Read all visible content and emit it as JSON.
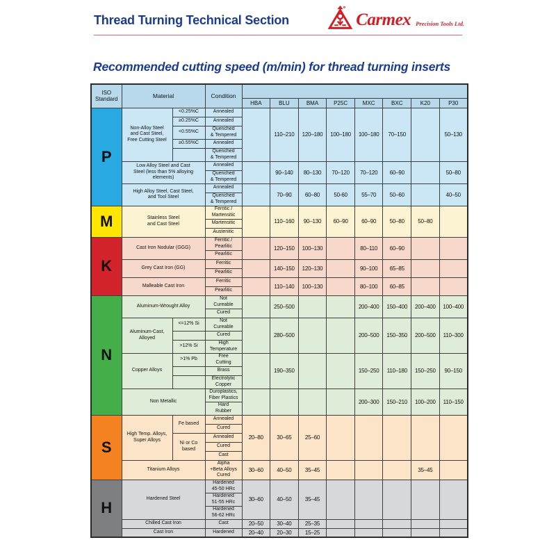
{
  "page": {
    "title": "Thread Turning Technical Section",
    "brand": {
      "name": "Carmex",
      "tagline": "Precision Tools Ltd."
    },
    "subtitle": "Recommended cutting speed (m/min) for thread turning inserts"
  },
  "colors": {
    "navy": "#1a3b8e",
    "carmex_red": "#d21f26",
    "header_bg": "#b7d9eb"
  },
  "table": {
    "headers": {
      "iso": "ISO\nStandard",
      "material": "Material",
      "condition": "Condition"
    },
    "grades": [
      "HBA",
      "BLU",
      "BMA",
      "P25C",
      "MXC",
      "BXC",
      "K20",
      "P30"
    ],
    "sections": [
      {
        "iso": "P",
        "label_bg": "#29a9e1",
        "row_bg": "#cbe6f4",
        "groups": [
          {
            "material": "Non-Alloy Steel\nand Cast Steel,\nFree Cutting Steel",
            "subspecs": [
              {
                "text": "<0.25%C",
                "span": 1
              },
              {
                "text": "≥0.25%C",
                "span": 1
              },
              {
                "text": "<0.55%C",
                "span": 1
              },
              {
                "text": "≥0.55%C",
                "span": 1
              },
              {
                "text": "",
                "span": 1
              }
            ],
            "conditions": [
              "Annealed",
              "Annealed",
              "Quenched\n& Tempered",
              "Annealed",
              "Quenched\n& Tempered"
            ],
            "values": [
              "",
              "110–210",
              "120–180",
              "100–180",
              "100–180",
              "70–150",
              "",
              "50–130"
            ]
          },
          {
            "material": "Low Alloy Steel and Cast\nSteel (less than 5% alloying\nelements)",
            "subspecs": null,
            "conditions": [
              "Annealed",
              "Quenched\n& Tempered"
            ],
            "values": [
              "",
              "90–140",
              "80–130",
              "70–120",
              "70–120",
              "60–90",
              "",
              "50–80"
            ]
          },
          {
            "material": "High Alloy Steel, Cast Steel,\nand Tool Steel",
            "subspecs": null,
            "conditions": [
              "Annealed",
              "Quenched\n& Tempered"
            ],
            "values": [
              "",
              "70–90",
              "60–80",
              "50-60",
              "55–70",
              "50–60",
              "",
              "40–50"
            ]
          }
        ]
      },
      {
        "iso": "M",
        "label_bg": "#ffe600",
        "row_bg": "#fbf3d2",
        "groups": [
          {
            "material": "Stainless Steel\nand Cast Steel",
            "subspecs": null,
            "conditions": [
              "Ferritic /\nMartensitic",
              "Martensitic",
              "Austenitic"
            ],
            "values": [
              "",
              "110–160",
              "90–130",
              "60–90",
              "60–90",
              "50–80",
              "50–80",
              ""
            ]
          }
        ]
      },
      {
        "iso": "K",
        "label_bg": "#d2232a",
        "row_bg": "#f6d9cb",
        "groups": [
          {
            "material": "Cast Iron Nodular (GGG)",
            "subspecs": null,
            "conditions": [
              "Ferritic /\nPearlitic",
              "Pearlitic"
            ],
            "values": [
              "",
              "120–150",
              "100–130",
              "",
              "80–110",
              "60–90",
              "",
              ""
            ]
          },
          {
            "material": "Grey Cast Iron (GG)",
            "subspecs": null,
            "conditions": [
              "Ferritic",
              "Pearlitic"
            ],
            "values": [
              "",
              "140–150",
              "120–130",
              "",
              "90–100",
              "65–85",
              "",
              ""
            ]
          },
          {
            "material": "Malleable Cast Iron",
            "subspecs": null,
            "conditions": [
              "Ferritic",
              "Pearlitic"
            ],
            "values": [
              "",
              "110–140",
              "100–130",
              "",
              "80–100",
              "60–85",
              "",
              ""
            ]
          }
        ]
      },
      {
        "iso": "N",
        "label_bg": "#44af49",
        "row_bg": "#dfedd8",
        "groups": [
          {
            "material": "Aluminum-Wrought Alloy",
            "subspecs": null,
            "conditions": [
              "Not\nCureable",
              "Cured"
            ],
            "values": [
              "",
              "250–500",
              "",
              "",
              "200–400",
              "150–400",
              "200–400",
              "100–400"
            ]
          },
          {
            "material": "Aluminum-Cast,\nAlloyed",
            "subspecs": [
              {
                "text": "<=12% Si",
                "span": 1
              },
              {
                "text": "",
                "span": 1
              },
              {
                "text": ">12% Si",
                "span": 1
              }
            ],
            "conditions": [
              "Not\nCureable",
              "Cured",
              "High\nTemperature"
            ],
            "values": [
              "",
              "280–500",
              "",
              "",
              "200–500",
              "150–350",
              "200–500",
              "110–300"
            ]
          },
          {
            "material": "Copper Alloys",
            "subspecs": [
              {
                "text": ">1% Pb",
                "span": 1
              },
              {
                "text": "",
                "span": 1
              },
              {
                "text": "",
                "span": 1
              }
            ],
            "conditions": [
              "Free\nCutting",
              "Brass",
              "Electrolytic\nCopper"
            ],
            "values": [
              "",
              "190–350",
              "",
              "",
              "150–250",
              "110–180",
              "150–250",
              "90–150"
            ]
          },
          {
            "material": "Non Metallic",
            "subspecs": null,
            "conditions": [
              "Duroplastics,\nFiber Plastics",
              "Hard\nRubber"
            ],
            "values": [
              "",
              "",
              "",
              "",
              "200–300",
              "150–210",
              "100–200",
              "110–150"
            ]
          }
        ]
      },
      {
        "iso": "S",
        "label_bg": "#f58220",
        "row_bg": "#fce4c9",
        "groups": [
          {
            "material": "High Temp. Alloys,\nSuper Alloys",
            "subspecs": [
              {
                "text": "Fe based",
                "span": 2
              },
              {
                "text": "Ni or Co\nbased",
                "span": 3
              }
            ],
            "conditions": [
              "Annealed",
              "Cured",
              "Annealed",
              "Cured",
              "Cast"
            ],
            "values": [
              "20–80",
              "30–65",
              "25–60",
              "",
              "",
              "",
              "",
              ""
            ]
          },
          {
            "material": "Titanium Alloys",
            "subspecs": null,
            "conditions": [
              "Alpha\n+Beta Alloys\nCured"
            ],
            "values": [
              "30–60",
              "40–50",
              "35–45",
              "",
              "",
              "",
              "35–45",
              ""
            ]
          }
        ]
      },
      {
        "iso": "H",
        "label_bg": "#7d7f81",
        "row_bg": "#d7d8d9",
        "groups": [
          {
            "material": "Hardened Steel",
            "subspecs": null,
            "conditions": [
              "Hardened\n45-50 HRc",
              "Hardened\n51-55 HRc",
              "Hardened\n56-62 HRc"
            ],
            "values": [
              "30–60",
              "40–50",
              "35–45",
              "",
              "",
              "",
              "",
              ""
            ]
          },
          {
            "material": "Chilled Cast Iron",
            "subspecs": null,
            "conditions": [
              "Cast"
            ],
            "values": [
              "20–50",
              "30–40",
              "25–35",
              "",
              "",
              "",
              "",
              ""
            ]
          },
          {
            "material": "Cast Iron",
            "subspecs": null,
            "conditions": [
              "Hardened"
            ],
            "values": [
              "20–40",
              "20–30",
              "15–25",
              "",
              "",
              "",
              "",
              ""
            ]
          }
        ]
      }
    ]
  }
}
